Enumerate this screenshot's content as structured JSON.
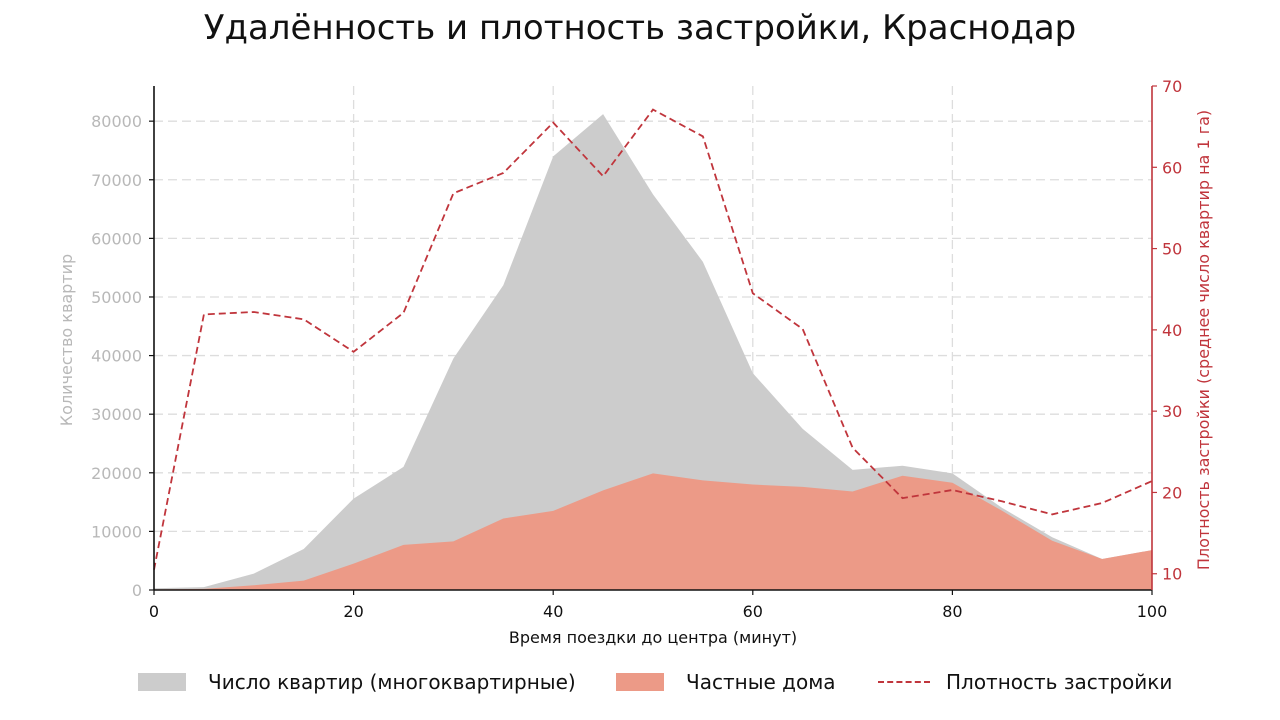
{
  "chart_data": {
    "type": "area",
    "title": "Удалённость и плотность застройки, Краснодар",
    "xlabel": "Время поездки до центра (минут)",
    "ylabel_left": "Количество квартир",
    "ylabel_right": "Плотность застройки (среднее число квартир на 1 га)",
    "x": [
      0,
      5,
      10,
      15,
      20,
      25,
      30,
      35,
      40,
      45,
      50,
      55,
      60,
      65,
      70,
      75,
      80,
      85,
      90,
      95,
      100
    ],
    "xlim": [
      0,
      100
    ],
    "ylim_left": [
      0,
      86000
    ],
    "ylim_right": [
      8,
      70
    ],
    "x_ticks": [
      0,
      20,
      40,
      60,
      80,
      100
    ],
    "y_ticks_left": [
      0,
      10000,
      20000,
      30000,
      40000,
      50000,
      60000,
      70000,
      80000
    ],
    "y_ticks_right": [
      10,
      20,
      30,
      40,
      50,
      60,
      70
    ],
    "grid": true,
    "legend_position": "bottom",
    "series": [
      {
        "name": "Число квартир (многоквартирные)",
        "kind": "area",
        "axis": "left",
        "color": "#cccccc",
        "values": [
          300,
          500,
          2800,
          7000,
          15600,
          21000,
          39500,
          52000,
          74000,
          81200,
          67500,
          56000,
          37000,
          27500,
          20500,
          21200,
          19900,
          14000,
          9000,
          5300,
          6800
        ]
      },
      {
        "name": "Частные дома",
        "kind": "area",
        "axis": "left",
        "color": "#ec9a87",
        "values": [
          100,
          200,
          800,
          1600,
          4500,
          7700,
          8300,
          12200,
          13500,
          17000,
          19900,
          18700,
          18000,
          17600,
          16800,
          19500,
          18300,
          13500,
          8400,
          5300,
          6800
        ]
      },
      {
        "name": "Плотность застройки",
        "kind": "line",
        "axis": "right",
        "color": "#c0353c",
        "dash": "dashed",
        "values": [
          10.5,
          41.9,
          42.2,
          41.3,
          37.3,
          42.1,
          56.8,
          59.3,
          65.5,
          58.9,
          67.1,
          63.8,
          44.5,
          40.1,
          25.5,
          19.3,
          20.3,
          18.9,
          17.3,
          18.7,
          21.4
        ]
      }
    ]
  }
}
